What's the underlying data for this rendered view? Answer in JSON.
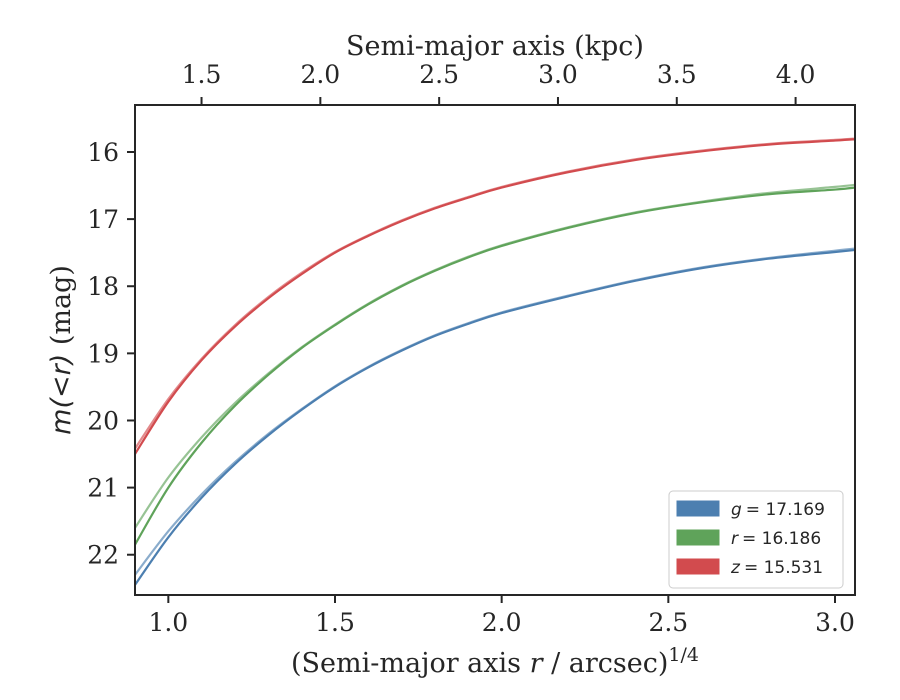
{
  "chart_data": {
    "type": "line",
    "top_axis": {
      "label": "Semi-major axis (kpc)",
      "ticks": [
        1.5,
        2.0,
        2.5,
        3.0,
        3.5,
        4.0
      ],
      "tick_labels": [
        "1.5",
        "2.0",
        "2.5",
        "3.0",
        "3.5",
        "4.0"
      ],
      "xlim": [
        1.22,
        4.25
      ]
    },
    "x_axis": {
      "label_prefix": "(Semi-major axis ",
      "label_var": "r",
      "label_suffix": " / arcsec)",
      "label_exponent": "1/4",
      "ticks": [
        1.0,
        1.5,
        2.0,
        2.5,
        3.0
      ],
      "tick_labels": [
        "1.0",
        "1.5",
        "2.0",
        "2.5",
        "3.0"
      ],
      "xlim": [
        0.9,
        3.06
      ]
    },
    "y_axis": {
      "label_var": "m(<r)",
      "label_unit": " (mag)",
      "ticks": [
        16,
        17,
        18,
        19,
        20,
        21,
        22
      ],
      "tick_labels": [
        "16",
        "17",
        "18",
        "19",
        "20",
        "21",
        "22"
      ],
      "ylim": [
        22.6,
        15.3
      ],
      "inverted": true
    },
    "series": [
      {
        "name": "g",
        "legend_var": "g",
        "legend_value": "= 17.169",
        "color": "#4c7fb0",
        "x": [
          0.9,
          1.0,
          1.1,
          1.2,
          1.3,
          1.4,
          1.5,
          1.6,
          1.7,
          1.8,
          1.9,
          2.0,
          2.2,
          2.4,
          2.6,
          2.8,
          3.0,
          3.06
        ],
        "values": [
          22.45,
          21.74,
          21.15,
          20.65,
          20.22,
          19.84,
          19.5,
          19.21,
          18.96,
          18.74,
          18.56,
          18.4,
          18.15,
          17.92,
          17.73,
          17.59,
          17.49,
          17.46
        ],
        "alt_values": [
          22.3,
          21.65,
          21.1,
          20.62,
          20.2,
          19.83,
          19.49,
          19.2,
          18.95,
          18.73,
          18.55,
          18.39,
          18.14,
          17.91,
          17.72,
          17.58,
          17.47,
          17.44
        ]
      },
      {
        "name": "r",
        "legend_var": "r",
        "legend_value": "= 16.186",
        "color": "#5fa35a",
        "x": [
          0.9,
          1.0,
          1.1,
          1.2,
          1.3,
          1.4,
          1.5,
          1.6,
          1.7,
          1.8,
          1.9,
          2.0,
          2.2,
          2.4,
          2.6,
          2.8,
          3.0,
          3.06
        ],
        "values": [
          21.85,
          21.0,
          20.33,
          19.78,
          19.32,
          18.92,
          18.58,
          18.27,
          18.0,
          17.77,
          17.57,
          17.4,
          17.13,
          16.91,
          16.75,
          16.63,
          16.56,
          16.53
        ],
        "alt_values": [
          21.6,
          20.85,
          20.25,
          19.74,
          19.3,
          18.91,
          18.57,
          18.26,
          17.99,
          17.76,
          17.56,
          17.39,
          17.12,
          16.9,
          16.74,
          16.61,
          16.52,
          16.49
        ]
      },
      {
        "name": "z",
        "legend_var": "z",
        "legend_value": "= 15.531",
        "color": "#d24b4e",
        "x": [
          0.9,
          1.0,
          1.1,
          1.2,
          1.3,
          1.4,
          1.5,
          1.6,
          1.7,
          1.8,
          1.9,
          2.0,
          2.2,
          2.4,
          2.6,
          2.8,
          3.0,
          3.06
        ],
        "values": [
          20.5,
          19.72,
          19.1,
          18.6,
          18.18,
          17.82,
          17.5,
          17.25,
          17.03,
          16.84,
          16.68,
          16.53,
          16.3,
          16.12,
          15.99,
          15.89,
          15.83,
          15.81
        ],
        "alt_values": [
          20.42,
          19.68,
          19.08,
          18.58,
          18.16,
          17.8,
          17.49,
          17.24,
          17.02,
          16.83,
          16.67,
          16.52,
          16.29,
          16.11,
          15.98,
          15.88,
          15.82,
          15.8
        ]
      }
    ]
  }
}
